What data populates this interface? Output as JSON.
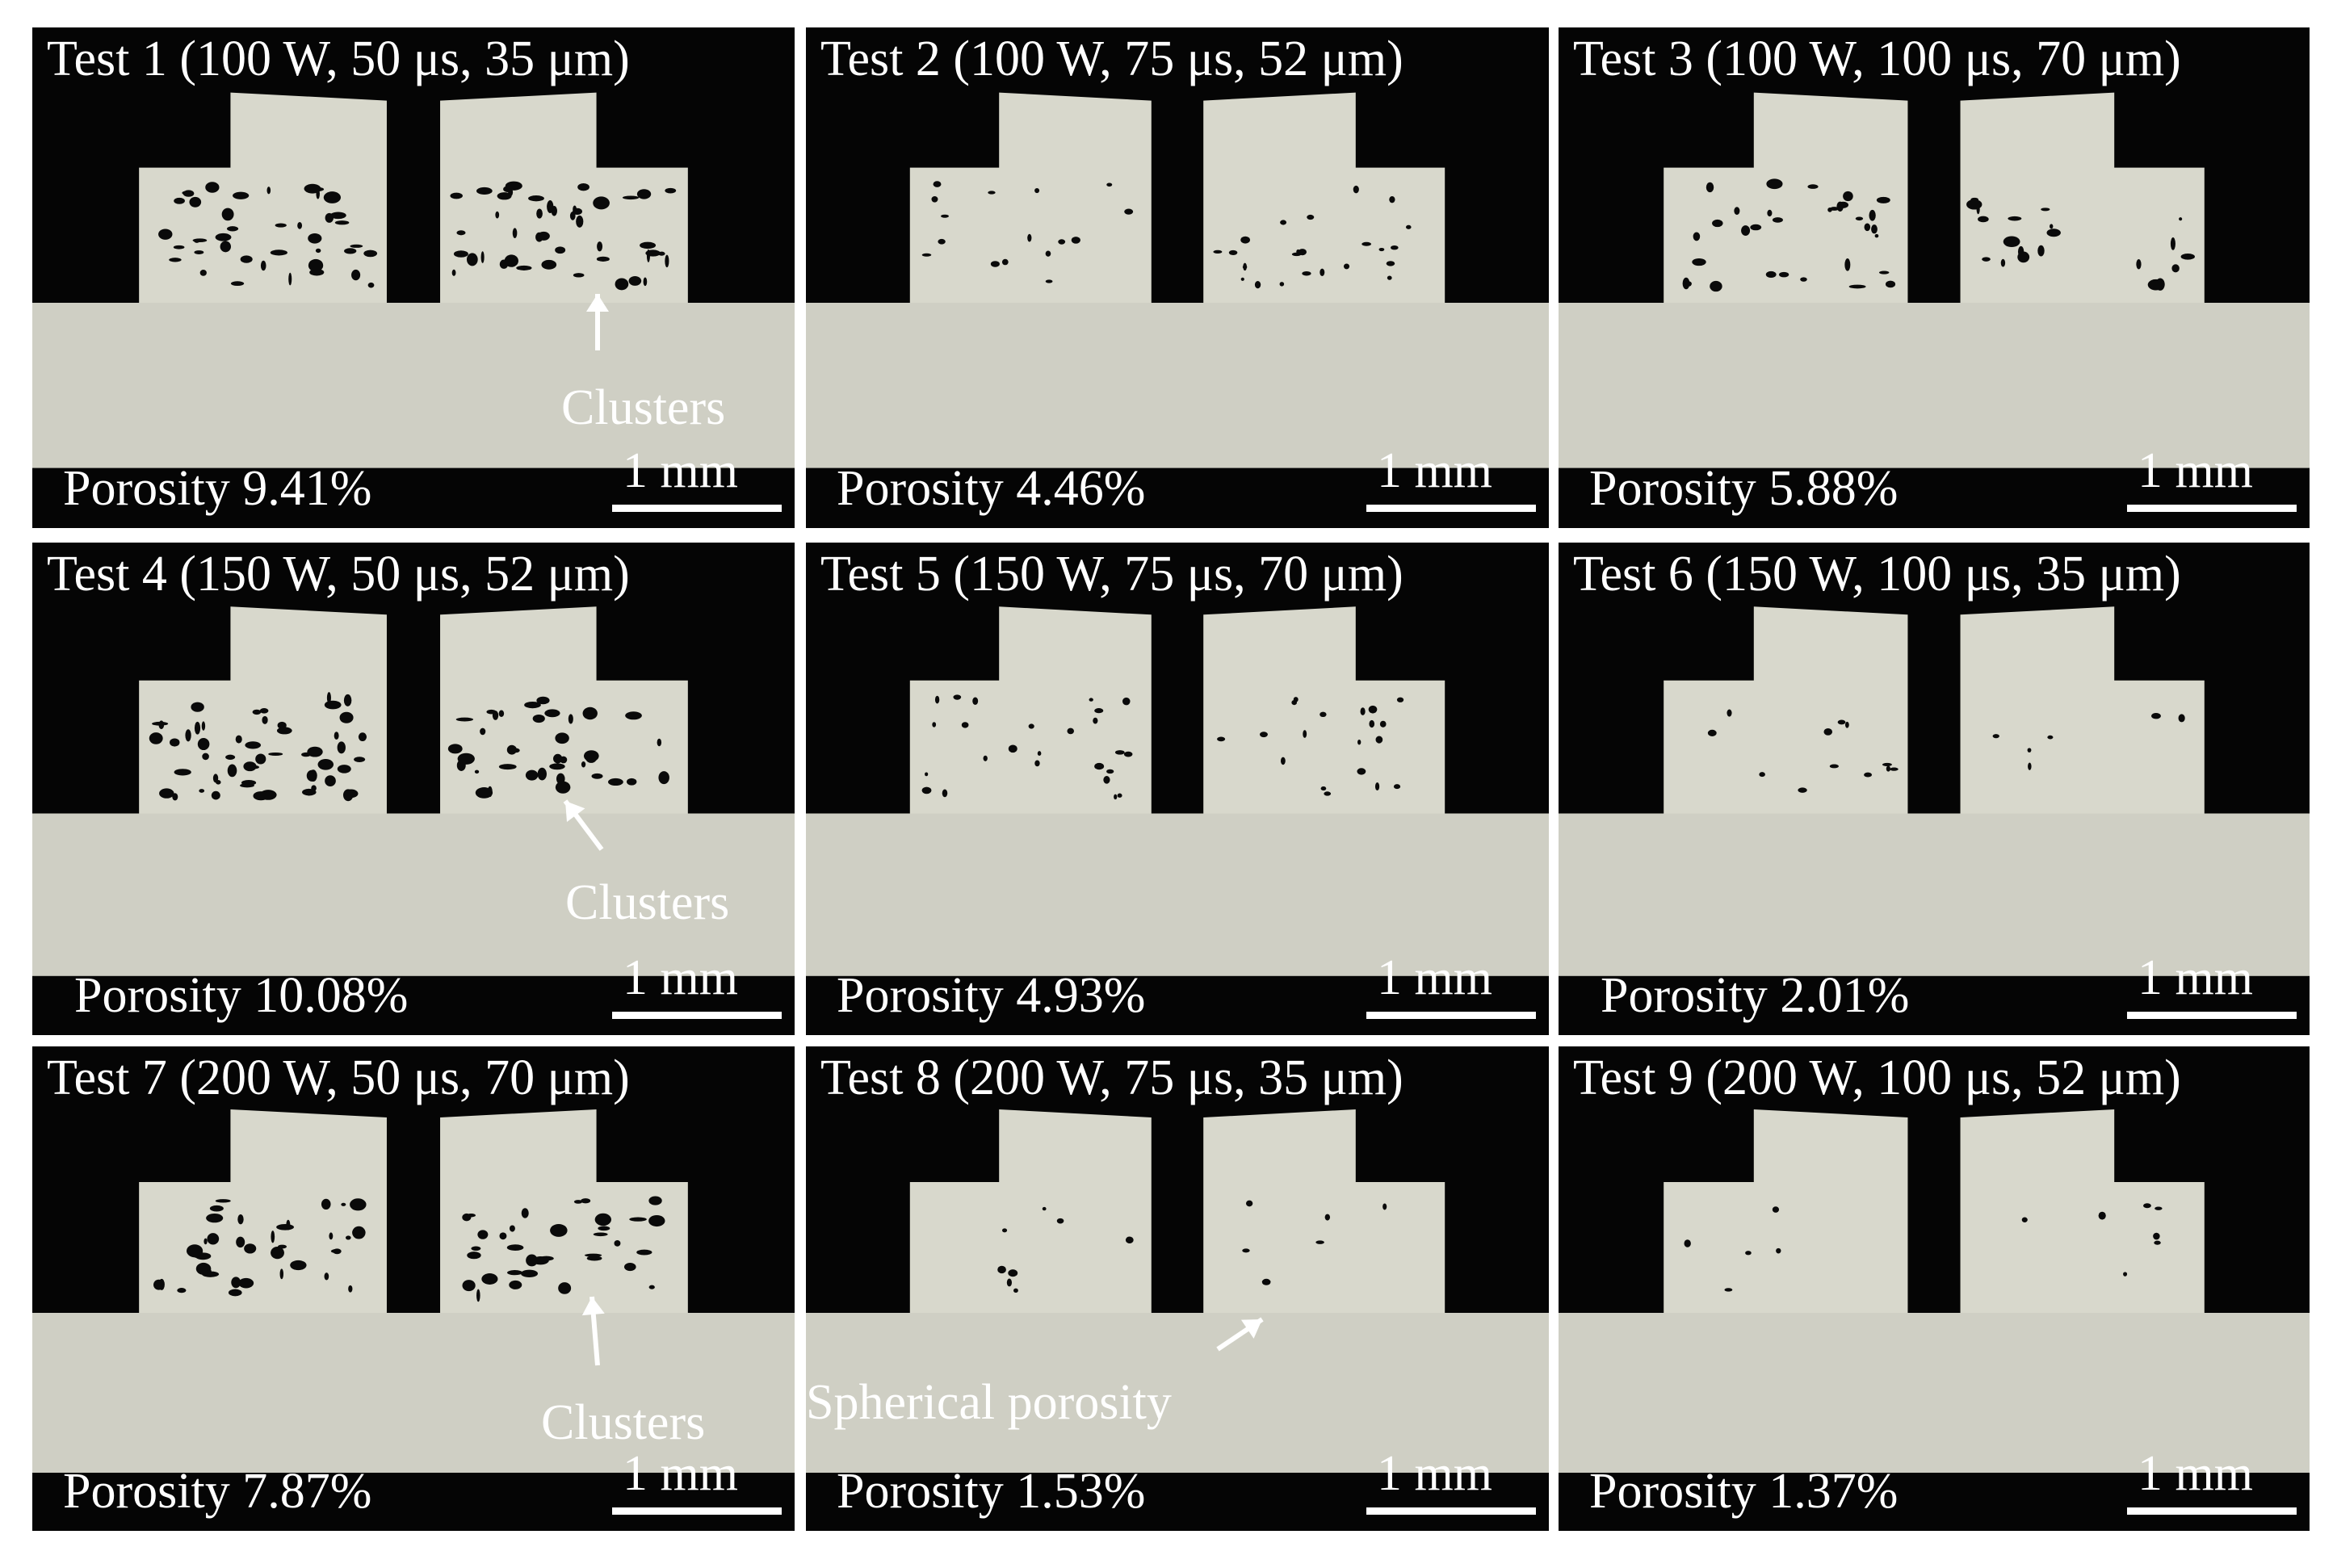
{
  "figure": {
    "panels": [
      {
        "title": "Test 1 (100 W, 50 μs, 35 μm)",
        "porosity": "Porosity 9.41%",
        "scale": "1 mm",
        "annotation": "Clusters",
        "porosity_percent": 9.41
      },
      {
        "title": "Test 2 (100 W, 75 μs, 52 μm)",
        "porosity": "Porosity 4.46%",
        "scale": "1 mm",
        "annotation": "",
        "porosity_percent": 4.46
      },
      {
        "title": "Test 3 (100 W, 100 μs, 70 μm)",
        "porosity": "Porosity 5.88%",
        "scale": "1 mm",
        "annotation": "",
        "porosity_percent": 5.88
      },
      {
        "title": "Test 4 (150 W, 50 μs, 52 μm)",
        "porosity": "Porosity 10.08%",
        "scale": "1 mm",
        "annotation": "Clusters",
        "porosity_percent": 10.08
      },
      {
        "title": "Test 5 (150 W, 75 μs, 70 μm)",
        "porosity": "Porosity 4.93%",
        "scale": "1 mm",
        "annotation": "",
        "porosity_percent": 4.93
      },
      {
        "title": "Test 6 (150 W, 100 μs, 35 μm)",
        "porosity": "Porosity 2.01%",
        "scale": "1 mm",
        "annotation": "",
        "porosity_percent": 2.01
      },
      {
        "title": "Test 7 (200 W, 50 μs, 70 μm)",
        "porosity": "Porosity 7.87%",
        "scale": "1 mm",
        "annotation": "Clusters",
        "porosity_percent": 7.87
      },
      {
        "title": "Test 8 (200 W, 75 μs, 35 μm)",
        "porosity": "Porosity 1.53%",
        "scale": "1 mm",
        "annotation": "Spherical porosity",
        "porosity_percent": 1.53
      },
      {
        "title": "Test 9 (200 W, 100 μs, 52 μm)",
        "porosity": "Porosity 1.37%",
        "scale": "1 mm",
        "annotation": "",
        "porosity_percent": 1.37
      }
    ],
    "colors": {
      "background": "#050505",
      "sample": "#d8d8cc",
      "substrate": "#cfcfc4",
      "pore": "#0a0a0a",
      "text": "#ffffff"
    }
  }
}
